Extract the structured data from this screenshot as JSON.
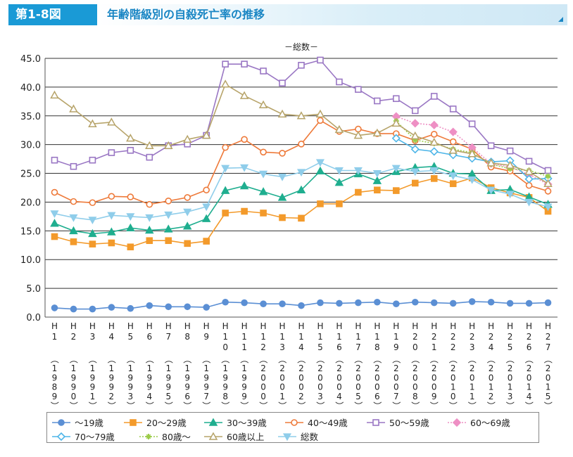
{
  "figure": {
    "tag": "第1-8図",
    "title": "年齢階級別の自殺死亡率の推移"
  },
  "chart_data": {
    "type": "line",
    "title": "－総数－",
    "xlabel": "",
    "ylabel": "",
    "ylim": [
      0,
      45
    ],
    "y_ticks": [
      "0.0",
      "5.0",
      "10.0",
      "15.0",
      "20.0",
      "25.0",
      "30.0",
      "35.0",
      "40.0",
      "45.0"
    ],
    "grid": true,
    "legend_position": "bottom",
    "x_era": [
      "H\n1",
      "H\n2",
      "H\n3",
      "H\n4",
      "H\n5",
      "H\n6",
      "H\n7",
      "H\n8",
      "H\n9",
      "H\n1\n0",
      "H\n1\n1",
      "H\n1\n2",
      "H\n1\n3",
      "H\n1\n4",
      "H\n1\n5",
      "H\n1\n6",
      "H\n1\n7",
      "H\n1\n8",
      "H\n1\n9",
      "H\n2\n0",
      "H\n2\n1",
      "H\n2\n2",
      "H\n2\n3",
      "H\n2\n4",
      "H\n2\n5",
      "H\n2\n6",
      "H\n2\n7"
    ],
    "x_year": [
      "1989",
      "1990",
      "1991",
      "1992",
      "1993",
      "1994",
      "1995",
      "1996",
      "1997",
      "1998",
      "1999",
      "2000",
      "2001",
      "2002",
      "2003",
      "2004",
      "2005",
      "2006",
      "2007",
      "2008",
      "2009",
      "2010",
      "2011",
      "2012",
      "2013",
      "2014",
      "2015"
    ],
    "series": [
      {
        "name": "～19歳",
        "color": "#5b8fd4",
        "marker": "circle",
        "dash": false,
        "values": [
          1.6,
          1.4,
          1.4,
          1.7,
          1.5,
          2.0,
          1.8,
          1.8,
          1.7,
          2.6,
          2.5,
          2.3,
          2.3,
          2.0,
          2.5,
          2.4,
          2.5,
          2.6,
          2.3,
          2.6,
          2.5,
          2.4,
          2.7,
          2.6,
          2.4,
          2.4,
          2.5
        ]
      },
      {
        "name": "20～29歳",
        "color": "#f39a2b",
        "marker": "square",
        "dash": false,
        "values": [
          14.0,
          13.1,
          12.7,
          12.9,
          12.2,
          13.3,
          13.3,
          12.8,
          13.2,
          18.1,
          18.4,
          18.1,
          17.3,
          17.2,
          19.7,
          19.7,
          21.7,
          22.1,
          22.0,
          23.3,
          24.1,
          23.2,
          24.2,
          22.5,
          21.6,
          20.8,
          18.4
        ]
      },
      {
        "name": "30～39歳",
        "color": "#1fae8f",
        "marker": "triangle",
        "dash": false,
        "values": [
          16.3,
          15.0,
          14.5,
          14.8,
          15.5,
          15.1,
          15.3,
          15.8,
          17.1,
          22.0,
          22.8,
          21.8,
          20.8,
          22.1,
          25.4,
          23.4,
          24.9,
          23.7,
          25.3,
          26.0,
          26.2,
          25.0,
          24.9,
          22.0,
          22.2,
          20.9,
          19.6
        ]
      },
      {
        "name": "40～49歳",
        "color": "#ee7a3a",
        "marker": "circle-open",
        "dash": false,
        "values": [
          21.7,
          20.1,
          19.9,
          21.0,
          20.9,
          19.6,
          20.2,
          20.8,
          22.1,
          29.5,
          30.9,
          28.7,
          28.5,
          30.1,
          34.2,
          32.3,
          32.7,
          31.9,
          31.9,
          30.7,
          31.8,
          30.5,
          29.2,
          26.1,
          25.4,
          22.9,
          21.9
        ]
      },
      {
        "name": "50～59歳",
        "color": "#9a77c4",
        "marker": "square-open",
        "dash": false,
        "values": [
          27.3,
          26.2,
          27.3,
          28.6,
          29.0,
          27.8,
          29.8,
          30.1,
          31.6,
          44.0,
          44.0,
          42.8,
          40.7,
          43.8,
          44.7,
          40.9,
          39.6,
          37.6,
          38.0,
          35.9,
          38.4,
          36.2,
          33.6,
          29.8,
          28.9,
          27.1,
          25.5
        ]
      },
      {
        "name": "60～69歳",
        "color": "#ee8fc4",
        "marker": "diamond",
        "dash": true,
        "values": [
          null,
          null,
          null,
          null,
          null,
          null,
          null,
          null,
          null,
          null,
          null,
          null,
          null,
          null,
          null,
          null,
          null,
          null,
          34.9,
          33.7,
          33.4,
          32.2,
          29.5,
          26.7,
          26.1,
          24.8,
          23.1
        ]
      },
      {
        "name": "70～79歳",
        "color": "#4fb6e8",
        "marker": "diamond-open",
        "dash": false,
        "values": [
          null,
          null,
          null,
          null,
          null,
          null,
          null,
          null,
          null,
          null,
          null,
          null,
          null,
          null,
          null,
          null,
          null,
          null,
          31.1,
          29.2,
          28.8,
          28.2,
          27.6,
          27.0,
          27.2,
          24.0,
          24.1
        ]
      },
      {
        "name": "80歳～",
        "color": "#9ccc4a",
        "marker": "star",
        "dash": true,
        "values": [
          null,
          null,
          null,
          null,
          null,
          null,
          null,
          null,
          null,
          null,
          null,
          null,
          null,
          null,
          null,
          null,
          null,
          null,
          34.1,
          30.8,
          30.2,
          29.2,
          28.6,
          26.6,
          25.8,
          25.5,
          24.5
        ]
      },
      {
        "name": "60歳以上",
        "color": "#b7a46a",
        "marker": "triangle-open",
        "dash": false,
        "values": [
          38.6,
          36.2,
          33.6,
          33.9,
          31.1,
          29.8,
          29.8,
          30.9,
          31.6,
          40.5,
          38.5,
          36.9,
          35.3,
          35.0,
          35.3,
          32.6,
          31.6,
          32.0,
          33.7,
          31.5,
          30.4,
          29.0,
          28.4,
          26.8,
          26.4,
          25.3,
          23.2
        ]
      },
      {
        "name": "総数",
        "color": "#8fcdea",
        "marker": "tri-down",
        "dash": false,
        "values": [
          18.0,
          17.3,
          16.9,
          17.7,
          17.5,
          17.3,
          17.8,
          18.3,
          19.2,
          25.9,
          26.0,
          24.9,
          24.4,
          25.2,
          26.9,
          25.5,
          25.5,
          25.0,
          25.9,
          25.3,
          25.5,
          24.6,
          23.9,
          22.1,
          21.4,
          20.0,
          19.2
        ]
      }
    ]
  }
}
